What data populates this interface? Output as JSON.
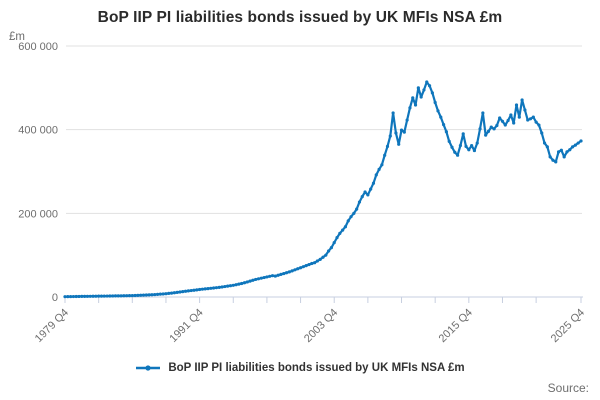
{
  "chart_data": {
    "type": "line",
    "title": "BoP IIP PI liabilities bonds issued by UK MFIs NSA £m",
    "unit_label": "£m",
    "source_label": "Source:",
    "line_color": "#0f76bc",
    "grid_color": "#e1e1e1",
    "axis_color": "#c7cfe0",
    "ylim": [
      0,
      600000
    ],
    "y_ticks": [
      {
        "value": 0,
        "label": "0"
      },
      {
        "value": 200000,
        "label": "200 000"
      },
      {
        "value": 400000,
        "label": "400 000"
      },
      {
        "value": 600000,
        "label": "600 000"
      }
    ],
    "x_tick_labels": [
      {
        "index": 0,
        "label": "1979 Q4"
      },
      {
        "index": 48,
        "label": "1991 Q4"
      },
      {
        "index": 96,
        "label": "2003 Q4"
      },
      {
        "index": 144,
        "label": "2015 Q4"
      },
      {
        "index": 184,
        "label": "2025 Q4"
      }
    ],
    "x_minor_tick_every": 12,
    "frequency": "quarterly",
    "start_period": "1979 Q4",
    "end_period": "2025 Q4",
    "series": [
      {
        "name": "BoP IIP PI liabilities bonds issued by UK MFIs NSA £m",
        "values": [
          800,
          900,
          1000,
          1100,
          1200,
          1300,
          1400,
          1500,
          1600,
          1700,
          1800,
          1900,
          2000,
          2100,
          2200,
          2300,
          2400,
          2500,
          2600,
          2700,
          2800,
          2950,
          3100,
          3250,
          3400,
          3600,
          3850,
          4100,
          4400,
          4700,
          5000,
          5400,
          5800,
          6300,
          6800,
          7300,
          7900,
          8600,
          9300,
          10100,
          11000,
          11900,
          12800,
          13700,
          14600,
          15400,
          16200,
          17000,
          18000,
          18700,
          19400,
          20100,
          20800,
          21500,
          22300,
          23100,
          24000,
          25000,
          26000,
          27000,
          28000,
          29400,
          30800,
          32300,
          34000,
          36000,
          38000,
          40000,
          42000,
          43500,
          45000,
          46500,
          48000,
          49500,
          51000,
          50000,
          52000,
          54000,
          56000,
          58000,
          60000,
          62500,
          65000,
          67500,
          70000,
          72500,
          75000,
          77500,
          80000,
          82000,
          86000,
          90000,
          95000,
          100000,
          110000,
          118000,
          130000,
          142000,
          152000,
          160000,
          168000,
          182000,
          192000,
          200000,
          210000,
          227000,
          240000,
          251000,
          244000,
          258000,
          272000,
          292000,
          305000,
          316000,
          339000,
          360000,
          385000,
          440000,
          392000,
          365000,
          399000,
          394000,
          423000,
          452000,
          476000,
          459000,
          500000,
          478000,
          495000,
          514000,
          505000,
          488000,
          465000,
          445000,
          430000,
          412000,
          395000,
          372000,
          358000,
          346000,
          339000,
          362000,
          390000,
          360000,
          352000,
          362000,
          350000,
          368000,
          402000,
          440000,
          387000,
          396000,
          406000,
          402000,
          410000,
          428000,
          420000,
          411000,
          422000,
          435000,
          416000,
          459000,
          430000,
          471000,
          447000,
          423000,
          426000,
          430000,
          418000,
          411000,
          392000,
          368000,
          359000,
          335000,
          327000,
          323000,
          347000,
          351000,
          335000,
          347000,
          352000,
          359000,
          363000,
          368000,
          373000
        ]
      }
    ]
  }
}
